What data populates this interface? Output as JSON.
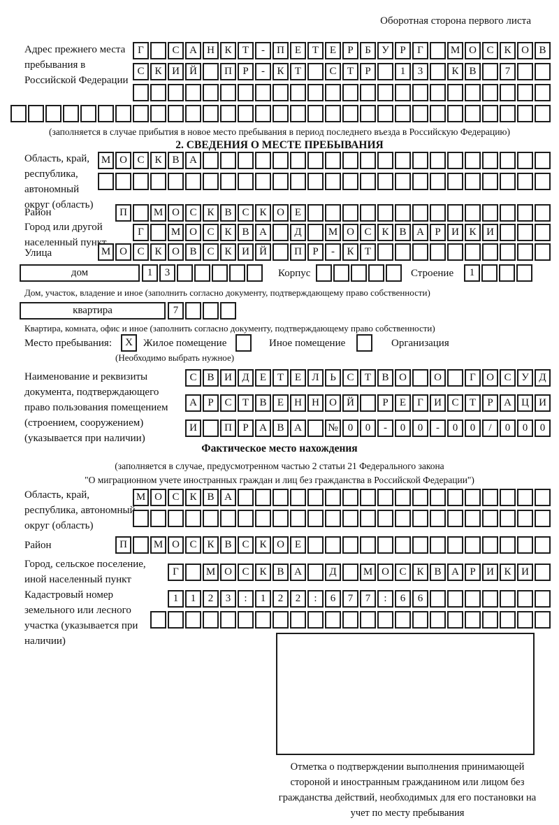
{
  "header": {
    "side_note": "Оборотная сторона первого листа"
  },
  "prev_address": {
    "label": "Адрес прежнего места пребывания в Российской Федерации",
    "row1": [
      "Г",
      "",
      "С",
      "А",
      "Н",
      "К",
      "Т",
      "-",
      "П",
      "Е",
      "Т",
      "Е",
      "Р",
      "Б",
      "У",
      "Р",
      "Г",
      "",
      "М",
      "О",
      "С",
      "К",
      "О",
      "В"
    ],
    "row2": [
      "С",
      "К",
      "И",
      "Й",
      "",
      "П",
      "Р",
      "-",
      "К",
      "Т",
      "",
      "С",
      "Т",
      "Р",
      "",
      "1",
      "3",
      "",
      "К",
      "В",
      "",
      "7",
      "",
      ""
    ],
    "row3": 24,
    "row4": 31,
    "note": "(заполняется в случае прибытия в новое место пребывания в период последнего въезда в Российскую Федерацию)"
  },
  "section2": {
    "title": "2. СВЕДЕНИЯ О МЕСТЕ ПРЕБЫВАНИЯ",
    "region": {
      "label": "Область, край, республика, автономный округ (область)",
      "row1": [
        "М",
        "О",
        "С",
        "К",
        "В",
        "А",
        "",
        "",
        "",
        "",
        "",
        "",
        "",
        "",
        "",
        "",
        "",
        "",
        "",
        "",
        "",
        "",
        "",
        "",
        "",
        ""
      ],
      "row2": 26
    },
    "district": {
      "label": "Район",
      "cells": [
        "П",
        "",
        "М",
        "О",
        "С",
        "К",
        "В",
        "С",
        "К",
        "О",
        "Е",
        "",
        "",
        "",
        "",
        "",
        "",
        "",
        "",
        "",
        "",
        "",
        "",
        "",
        ""
      ]
    },
    "city": {
      "label": "Город или другой населенный пункт",
      "cells": [
        "Г",
        "",
        "М",
        "О",
        "С",
        "К",
        "В",
        "А",
        "",
        "Д",
        "",
        "М",
        "О",
        "С",
        "К",
        "В",
        "А",
        "Р",
        "И",
        "К",
        "И",
        "",
        "",
        ""
      ]
    },
    "street": {
      "label": "Улица",
      "cells": [
        "М",
        "О",
        "С",
        "К",
        "О",
        "В",
        "С",
        "К",
        "И",
        "Й",
        "",
        "П",
        "Р",
        "-",
        "К",
        "Т",
        "",
        "",
        "",
        "",
        "",
        "",
        "",
        "",
        "",
        ""
      ]
    },
    "house": {
      "box_label": "дом",
      "cells": [
        "1",
        "3",
        "",
        "",
        "",
        "",
        ""
      ],
      "korpus_label": "Корпус",
      "korpus_cells": 5,
      "stroenie_label": "Строение",
      "stroenie_cells": [
        "1",
        "",
        "",
        ""
      ]
    },
    "house_note": "Дом, участок, владение и иное (заполнить согласно документу, подтверждающему право собственности)",
    "apartment": {
      "box_label": "квартира",
      "cells": [
        "7",
        "",
        "",
        ""
      ]
    },
    "apartment_note": "Квартира, комната, офис и иное (заполнить согласно документу, подтверждающему право собственности)",
    "stay": {
      "label": "Место пребывания:",
      "options": [
        {
          "checked": "X",
          "label": "Жилое помещение"
        },
        {
          "checked": "",
          "label": "Иное помещение"
        },
        {
          "checked": "",
          "label": "Организация"
        }
      ],
      "note": "(Необходимо выбрать нужное)"
    },
    "document": {
      "label": "Наименование и реквизиты документа, подтверждающего право пользования помещением (строением, сооружением) (указывается при наличии)",
      "row1": [
        "С",
        "В",
        "И",
        "Д",
        "Е",
        "Т",
        "Е",
        "Л",
        "Ь",
        "С",
        "Т",
        "В",
        "О",
        "",
        "О",
        "",
        "Г",
        "О",
        "С",
        "У",
        "Д"
      ],
      "row2": [
        "А",
        "Р",
        "С",
        "Т",
        "В",
        "Е",
        "Н",
        "Н",
        "О",
        "Й",
        "",
        "Р",
        "Е",
        "Г",
        "И",
        "С",
        "Т",
        "Р",
        "А",
        "Ц",
        "И"
      ],
      "row3": [
        "И",
        "",
        "П",
        "Р",
        "А",
        "В",
        "А",
        "",
        "№",
        "0",
        "0",
        "-",
        "0",
        "0",
        "-",
        "0",
        "0",
        "/",
        "0",
        "0",
        "0"
      ]
    }
  },
  "actual_location": {
    "title": "Фактическое место нахождения",
    "note1": "(заполняется в случае, предусмотренном частью 2 статьи 21 Федерального закона",
    "note2": "\"О миграционном учете иностранных граждан и лиц без гражданства в Российской Федерации\")",
    "region": {
      "label": "Область, край, республика, автономный округ (область)",
      "row1": [
        "М",
        "О",
        "С",
        "К",
        "В",
        "А",
        "",
        "",
        "",
        "",
        "",
        "",
        "",
        "",
        "",
        "",
        "",
        "",
        "",
        "",
        "",
        "",
        "",
        ""
      ],
      "row2": 24
    },
    "district": {
      "label": "Район",
      "cells": [
        "П",
        "",
        "М",
        "О",
        "С",
        "К",
        "В",
        "С",
        "К",
        "О",
        "Е",
        "",
        "",
        "",
        "",
        "",
        "",
        "",
        "",
        "",
        "",
        "",
        "",
        "",
        ""
      ]
    },
    "city": {
      "label": "Город, сельское поселение, иной населенный пункт",
      "cells": [
        "Г",
        "",
        "М",
        "О",
        "С",
        "К",
        "В",
        "А",
        "",
        "Д",
        "",
        "М",
        "О",
        "С",
        "К",
        "В",
        "А",
        "Р",
        "И",
        "К",
        "И",
        ""
      ]
    },
    "cadastral": {
      "label": "Кадастровый номер земельного или лесного участка (указывается при наличии)",
      "row1": [
        "1",
        "1",
        "2",
        "3",
        ":",
        "1",
        "2",
        "2",
        ":",
        "6",
        "7",
        "7",
        ":",
        "6",
        "6",
        "",
        "",
        "",
        "",
        "",
        "",
        ""
      ],
      "row2": 23
    },
    "stamp_note": "Отметка о подтверждении выполнения принимающей стороной и иностранным гражданином или лицом без гражданства действий, необходимых для его постановки на учет по месту пребывания"
  }
}
